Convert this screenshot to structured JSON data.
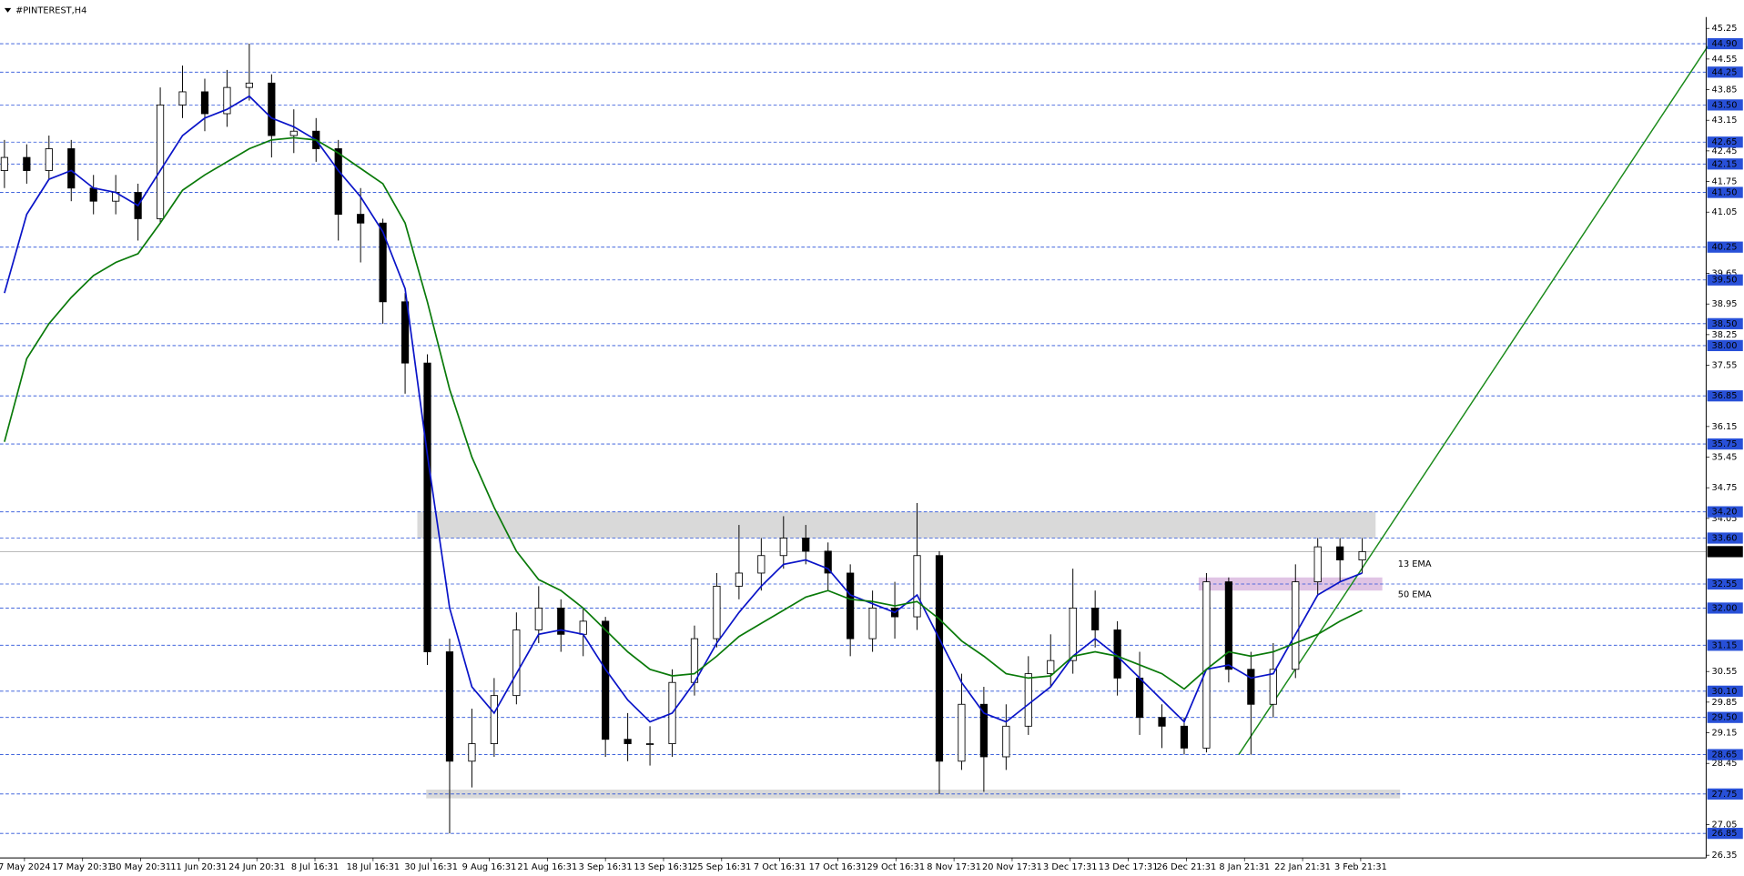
{
  "chart_data": {
    "type": "candlestick",
    "title": "#PINTEREST,H4",
    "x_labels": [
      "7 May 2024",
      "17 May 20:31",
      "30 May 20:31",
      "11 Jun 20:31",
      "24 Jun 20:31",
      "8 Jul 16:31",
      "18 Jul 16:31",
      "30 Jul 16:31",
      "9 Aug 16:31",
      "21 Aug 16:31",
      "3 Sep 16:31",
      "13 Sep 16:31",
      "25 Sep 16:31",
      "7 Oct 16:31",
      "17 Oct 16:31",
      "29 Oct 16:31",
      "8 Nov 17:31",
      "20 Nov 17:31",
      "3 Dec 17:31",
      "13 Dec 17:31",
      "26 Dec 21:31",
      "8 Jan 21:31",
      "22 Jan 21:31",
      "3 Feb 21:31"
    ],
    "open": [
      42.0,
      42.3,
      42.0,
      42.5,
      41.6,
      41.3,
      41.5,
      40.9,
      43.5,
      43.8,
      43.3,
      43.9,
      44.0,
      42.8,
      42.9,
      42.5,
      41.0,
      40.8,
      39.0,
      37.6,
      31.0,
      28.5,
      28.9,
      30.0,
      31.5,
      32.0,
      31.4,
      31.7,
      29.0,
      28.9,
      28.9,
      30.3,
      31.3,
      32.5,
      32.8,
      33.2,
      33.6,
      33.3,
      32.8,
      31.3,
      32.0,
      31.8,
      33.2,
      28.5,
      29.8,
      28.6,
      29.3,
      30.5,
      30.8,
      32.0,
      31.5,
      30.4,
      29.5,
      29.3,
      28.8,
      32.6,
      30.6,
      29.8,
      30.6,
      32.6,
      33.4,
      33.1
    ],
    "high": [
      42.7,
      42.6,
      42.8,
      42.7,
      41.9,
      41.9,
      41.7,
      43.9,
      44.4,
      44.1,
      44.3,
      44.9,
      44.2,
      43.4,
      43.2,
      42.7,
      41.6,
      40.9,
      39.2,
      37.8,
      31.3,
      29.7,
      30.4,
      31.9,
      32.5,
      32.2,
      32.0,
      31.8,
      29.6,
      29.3,
      30.6,
      31.6,
      32.8,
      33.9,
      33.6,
      34.1,
      33.9,
      33.5,
      33.0,
      32.4,
      32.6,
      34.4,
      33.3,
      30.5,
      30.2,
      29.8,
      30.9,
      31.4,
      32.9,
      32.4,
      31.7,
      31.0,
      29.8,
      29.5,
      32.8,
      32.7,
      31.0,
      31.2,
      33.0,
      33.6,
      33.6,
      33.6
    ],
    "low": [
      41.6,
      41.7,
      41.8,
      41.3,
      41.0,
      41.0,
      40.4,
      40.8,
      43.2,
      42.9,
      43.0,
      43.6,
      42.3,
      42.4,
      42.2,
      40.4,
      39.9,
      38.5,
      36.9,
      30.7,
      26.85,
      27.9,
      28.6,
      29.8,
      31.2,
      31.0,
      30.9,
      28.6,
      28.5,
      28.4,
      28.6,
      30.0,
      31.1,
      32.2,
      32.4,
      32.9,
      33.0,
      32.4,
      30.9,
      31.0,
      31.3,
      31.5,
      27.75,
      28.3,
      27.8,
      28.3,
      29.1,
      30.2,
      30.5,
      31.1,
      30.0,
      29.1,
      28.8,
      28.65,
      28.7,
      30.3,
      28.65,
      29.5,
      30.4,
      32.3,
      32.6,
      32.8
    ],
    "close": [
      42.3,
      42.0,
      42.5,
      41.6,
      41.3,
      41.5,
      40.9,
      43.5,
      43.8,
      43.3,
      43.9,
      44.0,
      42.8,
      42.9,
      42.5,
      41.0,
      40.8,
      39.0,
      37.6,
      31.0,
      28.5,
      28.9,
      30.0,
      31.5,
      32.0,
      31.4,
      31.7,
      29.0,
      28.9,
      28.9,
      30.3,
      31.3,
      32.5,
      32.8,
      33.2,
      33.6,
      33.3,
      32.8,
      31.3,
      32.0,
      31.8,
      33.2,
      28.5,
      29.8,
      28.6,
      29.3,
      30.5,
      30.8,
      32.0,
      31.5,
      30.4,
      29.5,
      29.3,
      28.8,
      32.6,
      30.6,
      29.8,
      30.6,
      32.6,
      33.4,
      33.1,
      33.29
    ],
    "series": [
      {
        "name": "13 EMA",
        "color": "#0a14c8",
        "values": [
          39.2,
          41.0,
          41.8,
          42.0,
          41.6,
          41.5,
          41.2,
          42.0,
          42.8,
          43.2,
          43.4,
          43.7,
          43.2,
          43.0,
          42.7,
          42.0,
          41.4,
          40.6,
          39.3,
          35.5,
          32.0,
          30.2,
          29.6,
          30.5,
          31.4,
          31.5,
          31.4,
          30.6,
          29.9,
          29.4,
          29.6,
          30.3,
          31.2,
          31.9,
          32.5,
          33.0,
          33.1,
          32.9,
          32.3,
          32.1,
          31.9,
          32.3,
          31.3,
          30.3,
          29.6,
          29.4,
          29.8,
          30.2,
          30.9,
          31.3,
          30.9,
          30.4,
          29.9,
          29.4,
          30.6,
          30.7,
          30.4,
          30.5,
          31.4,
          32.3,
          32.6,
          32.8
        ]
      },
      {
        "name": "50 EMA",
        "color": "#0a7a0a",
        "values": [
          35.8,
          37.7,
          38.5,
          39.1,
          39.6,
          39.9,
          40.1,
          40.8,
          41.55,
          41.9,
          42.2,
          42.5,
          42.7,
          42.75,
          42.7,
          42.4,
          42.05,
          41.7,
          40.8,
          39.0,
          37.0,
          35.45,
          34.3,
          33.3,
          32.65,
          32.4,
          32.0,
          31.5,
          31.0,
          30.6,
          30.45,
          30.5,
          30.9,
          31.35,
          31.65,
          31.95,
          32.25,
          32.4,
          32.2,
          32.15,
          32.05,
          32.15,
          31.75,
          31.25,
          30.9,
          30.5,
          30.4,
          30.45,
          30.9,
          31.0,
          30.9,
          30.7,
          30.5,
          30.15,
          30.6,
          31.0,
          30.9,
          31.0,
          31.2,
          31.4,
          31.7,
          31.95
        ]
      }
    ],
    "ylim": [
      26.29,
      45.51
    ],
    "yticks": [
      45.25,
      44.55,
      43.85,
      43.15,
      42.45,
      41.75,
      41.05,
      39.65,
      38.95,
      38.25,
      37.55,
      36.15,
      35.45,
      34.75,
      34.05,
      30.55,
      29.85,
      29.15,
      28.45,
      27.05,
      26.35
    ],
    "levels": [
      {
        "value": 44.9,
        "label": "44.90"
      },
      44.25,
      {
        "value": 43.5,
        "label": "43.50"
      },
      42.65,
      42.15,
      {
        "value": 41.5,
        "label": "41.50"
      },
      40.25,
      {
        "value": 39.5,
        "label": "39.50"
      },
      {
        "value": 38.5,
        "label": "38.50"
      },
      {
        "value": 38,
        "label": "38.00"
      },
      36.85,
      35.75,
      {
        "value": 34.2,
        "label": "34.20"
      },
      {
        "value": 33.6,
        "label": "33.60"
      },
      32.55,
      {
        "value": 32,
        "label": "32.00"
      },
      31.15,
      {
        "value": 30.1,
        "label": "30.10"
      },
      {
        "value": 29.5,
        "label": "29.50"
      },
      28.65,
      27.75,
      26.85
    ],
    "level_color": "#2850d8",
    "current_price": 33.29,
    "zones": [
      {
        "top": 34.2,
        "bottom": 33.6,
        "color": "#d9d9d9"
      },
      {
        "top": 27.85,
        "bottom": 27.65,
        "color": "#d9d9d9"
      },
      {
        "top": 32.7,
        "bottom": 32.4,
        "color": "#e0c4e4"
      }
    ],
    "trendline": {
      "from": 28.65,
      "to": 44.9,
      "color": "#1a8a1a"
    }
  }
}
